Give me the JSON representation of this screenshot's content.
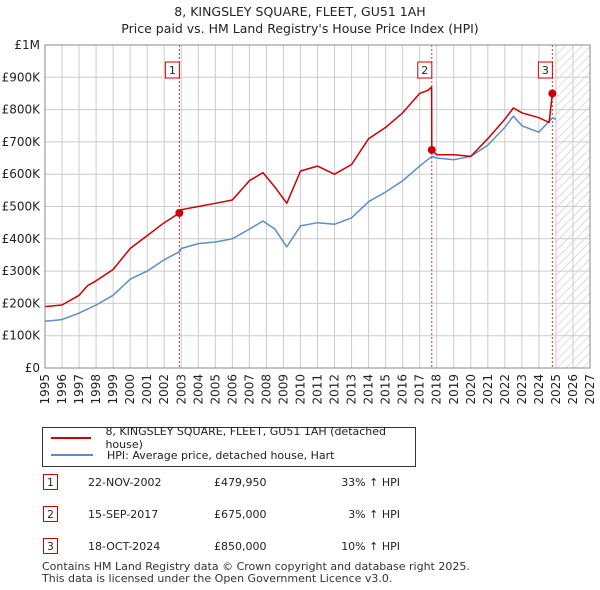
{
  "title_line1": "8, KINGSLEY SQUARE, FLEET, GU51 1AH",
  "title_line2": "Price paid vs. HM Land Registry's House Price Index (HPI)",
  "colors": {
    "property": "#cc0000",
    "hpi": "#5b8ec9",
    "grid": "#cccccc",
    "marker_line": "#cc0000"
  },
  "legend": {
    "property_label": "8, KINGSLEY SQUARE, FLEET, GU51 1AH (detached house)",
    "hpi_label": "HPI: Average price, detached house, Hart"
  },
  "sales": [
    {
      "num": "1",
      "date": "22-NOV-2002",
      "price": "£479,950",
      "hpi_change": "33% ↑ HPI"
    },
    {
      "num": "2",
      "date": "15-SEP-2017",
      "price": "£675,000",
      "hpi_change": "3% ↑ HPI"
    },
    {
      "num": "3",
      "date": "18-OCT-2024",
      "price": "£850,000",
      "hpi_change": "10% ↑ HPI"
    }
  ],
  "footer_line1": "Contains HM Land Registry data © Crown copyright and database right 2025.",
  "footer_line2": "This data is licensed under the Open Government Licence v3.0.",
  "chart_data": {
    "type": "line",
    "title": "8, KINGSLEY SQUARE, FLEET, GU51 1AH — Price paid vs. HM Land Registry's House Price Index (HPI)",
    "xlabel": "",
    "ylabel": "",
    "xlim": [
      1995,
      2027
    ],
    "ylim": [
      0,
      1000000
    ],
    "x_ticks": [
      1995,
      1996,
      1997,
      1998,
      1999,
      2000,
      2001,
      2002,
      2003,
      2004,
      2005,
      2006,
      2007,
      2008,
      2009,
      2010,
      2011,
      2012,
      2013,
      2014,
      2015,
      2016,
      2017,
      2018,
      2019,
      2020,
      2021,
      2022,
      2023,
      2024,
      2025,
      2026,
      2027
    ],
    "y_ticks": [
      0,
      100000,
      200000,
      300000,
      400000,
      500000,
      600000,
      700000,
      800000,
      900000,
      1000000
    ],
    "y_tick_labels": [
      "£0",
      "£100K",
      "£200K",
      "£300K",
      "£400K",
      "£500K",
      "£600K",
      "£700K",
      "£800K",
      "£900K",
      "£1M"
    ],
    "forecast_from": 2025.0,
    "sale_markers": [
      {
        "label": "1",
        "x": 2002.89,
        "y": 479950
      },
      {
        "label": "2",
        "x": 2017.71,
        "y": 675000
      },
      {
        "label": "3",
        "x": 2024.79,
        "y": 850000
      }
    ],
    "series": [
      {
        "name": "8, KINGSLEY SQUARE, FLEET, GU51 1AH (detached house)",
        "x": [
          1995,
          1996,
          1997,
          1997.5,
          1998,
          1999,
          2000,
          2001,
          2002,
          2002.89,
          2003,
          2004,
          2005,
          2006,
          2007,
          2007.8,
          2008.5,
          2009.2,
          2010,
          2011,
          2012,
          2013,
          2014,
          2015,
          2016,
          2017,
          2017.5,
          2017.7,
          2017.71,
          2018,
          2019,
          2020,
          2021,
          2022,
          2022.5,
          2023,
          2024,
          2024.6,
          2024.79
        ],
        "y": [
          190000,
          195000,
          225000,
          255000,
          270000,
          305000,
          370000,
          410000,
          450000,
          479950,
          490000,
          500000,
          510000,
          520000,
          580000,
          605000,
          560000,
          510000,
          610000,
          625000,
          600000,
          630000,
          710000,
          745000,
          790000,
          850000,
          860000,
          870000,
          675000,
          660000,
          660000,
          655000,
          710000,
          770000,
          805000,
          790000,
          775000,
          760000,
          850000
        ]
      },
      {
        "name": "HPI: Average price, detached house, Hart",
        "x": [
          1995,
          1996,
          1997,
          1998,
          1999,
          2000,
          2001,
          2002,
          2002.89,
          2003,
          2004,
          2005,
          2006,
          2007,
          2007.8,
          2008.5,
          2009.2,
          2010,
          2011,
          2012,
          2013,
          2014,
          2015,
          2016,
          2017,
          2017.71,
          2018,
          2019,
          2020,
          2021,
          2022,
          2022.5,
          2023,
          2024,
          2024.79,
          2025
        ],
        "y": [
          145000,
          150000,
          170000,
          195000,
          225000,
          275000,
          300000,
          335000,
          360000,
          370000,
          385000,
          390000,
          400000,
          430000,
          455000,
          430000,
          375000,
          440000,
          450000,
          445000,
          465000,
          515000,
          545000,
          580000,
          625000,
          655000,
          650000,
          645000,
          655000,
          690000,
          745000,
          780000,
          750000,
          730000,
          775000,
          770000
        ]
      }
    ]
  }
}
